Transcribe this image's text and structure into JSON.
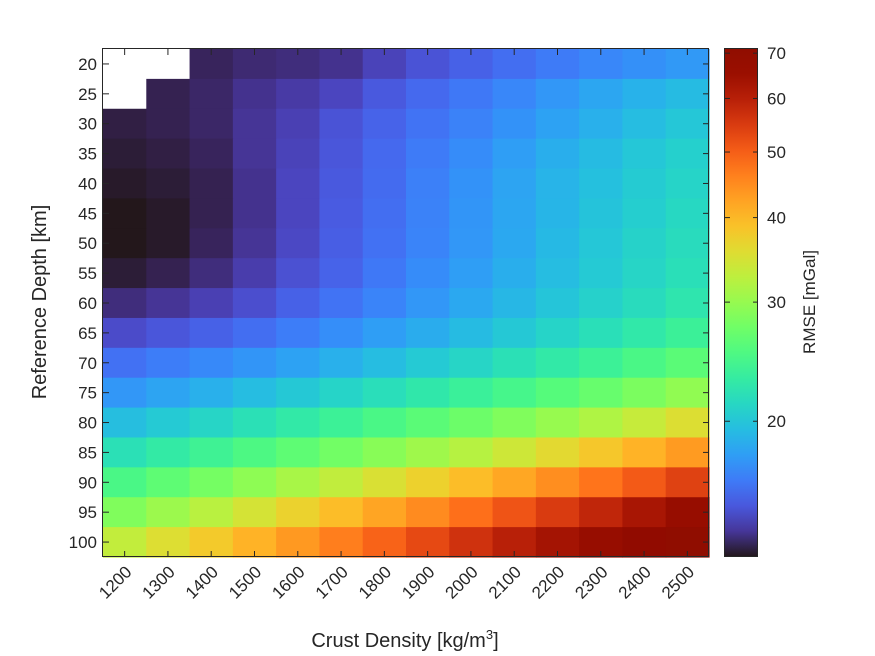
{
  "chart_data": {
    "type": "heatmap",
    "xlabel": "Crust Density [kg/m",
    "xlabel_superscript": "3",
    "xlabel_suffix": "]",
    "ylabel": "Reference Depth [km]",
    "colorbar_label": "RMSE [mGal]",
    "x": [
      "1200",
      "1300",
      "1400",
      "1500",
      "1600",
      "1700",
      "1800",
      "1900",
      "2000",
      "2100",
      "2200",
      "2300",
      "2400",
      "2500"
    ],
    "y": [
      "20",
      "25",
      "30",
      "35",
      "40",
      "45",
      "50",
      "55",
      "60",
      "65",
      "70",
      "75",
      "80",
      "85",
      "90",
      "95",
      "100"
    ],
    "colorbar": {
      "scale": "log",
      "range": [
        12.6,
        71
      ],
      "ticks": [
        20,
        30,
        40,
        50,
        60,
        70
      ],
      "tick_labels": [
        "20",
        "30",
        "40",
        "50",
        "60",
        "70"
      ],
      "colormap": "turbo"
    },
    "values": [
      [
        null,
        null,
        13.1,
        13.3,
        13.4,
        13.6,
        14.2,
        14.8,
        15.3,
        15.8,
        16.3,
        16.8,
        17.2,
        17.6
      ],
      [
        null,
        13.0,
        13.2,
        13.6,
        13.9,
        14.3,
        15.0,
        15.6,
        16.2,
        16.8,
        17.5,
        18.2,
        18.8,
        19.3
      ],
      [
        12.9,
        13.0,
        13.2,
        13.7,
        14.1,
        14.8,
        15.4,
        16.0,
        16.6,
        17.3,
        18.0,
        18.7,
        19.4,
        20.0
      ],
      [
        12.8,
        12.9,
        13.1,
        13.7,
        14.2,
        14.9,
        15.6,
        16.3,
        17.0,
        17.8,
        18.6,
        19.3,
        20.0,
        20.6
      ],
      [
        12.7,
        12.8,
        13.0,
        13.6,
        14.3,
        15.0,
        15.7,
        16.5,
        17.3,
        18.1,
        18.9,
        19.6,
        20.3,
        20.9
      ],
      [
        12.6,
        12.7,
        13.0,
        13.6,
        14.3,
        15.1,
        15.8,
        16.6,
        17.4,
        18.2,
        19.0,
        19.8,
        20.5,
        21.2
      ],
      [
        12.6,
        12.7,
        13.1,
        13.7,
        14.4,
        15.2,
        15.9,
        16.7,
        17.5,
        18.3,
        19.2,
        20.0,
        20.8,
        21.5
      ],
      [
        12.8,
        13.0,
        13.4,
        14.0,
        14.7,
        15.4,
        16.2,
        17.0,
        17.8,
        18.6,
        19.4,
        20.2,
        21.0,
        21.8
      ],
      [
        13.4,
        13.7,
        14.1,
        14.6,
        15.3,
        16.0,
        16.7,
        17.5,
        18.3,
        19.1,
        19.9,
        20.7,
        21.5,
        22.4
      ],
      [
        14.5,
        14.9,
        15.3,
        15.8,
        16.4,
        17.1,
        17.8,
        18.5,
        19.3,
        20.1,
        20.9,
        21.8,
        22.7,
        23.7
      ],
      [
        15.9,
        16.4,
        16.9,
        17.4,
        18.0,
        18.7,
        19.4,
        20.2,
        21.0,
        21.9,
        22.8,
        23.8,
        24.9,
        26.0
      ],
      [
        17.5,
        18.1,
        18.7,
        19.4,
        20.1,
        20.9,
        21.7,
        22.6,
        23.6,
        24.6,
        25.7,
        26.9,
        28.2,
        29.6
      ],
      [
        19.5,
        20.2,
        21.0,
        21.9,
        22.8,
        23.8,
        24.9,
        26.0,
        27.2,
        28.5,
        30.0,
        31.6,
        33.3,
        35.2
      ],
      [
        21.9,
        22.9,
        24.0,
        25.1,
        26.3,
        27.6,
        29.0,
        30.5,
        32.1,
        33.9,
        35.9,
        38.1,
        40.5,
        43.1
      ],
      [
        24.9,
        26.3,
        27.8,
        29.4,
        31.1,
        32.9,
        34.9,
        37.0,
        39.3,
        41.8,
        44.5,
        47.4,
        50.5,
        53.8
      ],
      [
        28.5,
        30.3,
        32.3,
        34.5,
        36.8,
        39.3,
        42.0,
        44.9,
        48.0,
        51.3,
        54.8,
        58.5,
        62.3,
        66.3
      ],
      [
        33.0,
        35.3,
        37.8,
        40.5,
        43.3,
        46.3,
        49.5,
        52.8,
        56.2,
        59.7,
        63.1,
        66.3,
        69.0,
        71.0
      ]
    ]
  }
}
